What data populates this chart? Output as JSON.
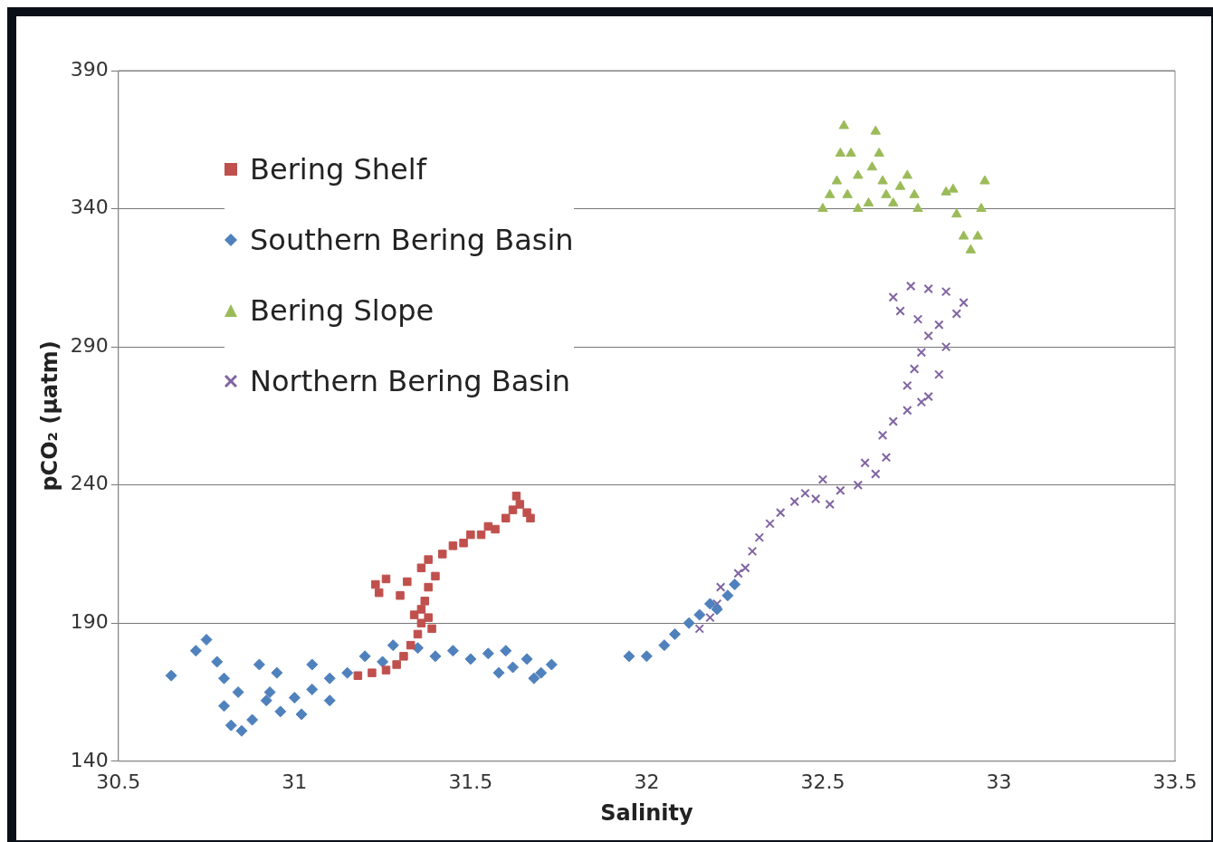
{
  "chart_data": {
    "type": "scatter",
    "xlabel": "Salinity",
    "ylabel": "pCO₂ (µatm)",
    "xlim": [
      30.5,
      33.5
    ],
    "xticks": [
      30.5,
      31,
      31.5,
      32,
      32.5,
      33,
      33.5
    ],
    "ylim": [
      140,
      390
    ],
    "yticks": [
      140,
      190,
      240,
      290,
      340,
      390
    ],
    "grid": "y",
    "legend": "top left",
    "series": [
      {
        "name": "Bering Shelf",
        "color": "#c0504d",
        "marker": "square",
        "x": [
          31.18,
          31.22,
          31.26,
          31.29,
          31.31,
          31.33,
          31.35,
          31.36,
          31.34,
          31.36,
          31.38,
          31.39,
          31.37,
          31.3,
          31.24,
          31.23,
          31.26,
          31.32,
          31.38,
          31.4,
          31.36,
          31.38,
          31.42,
          31.45,
          31.48,
          31.5,
          31.53,
          31.55,
          31.57,
          31.6,
          31.62,
          31.64,
          31.66,
          31.67,
          31.63
        ],
        "values": [
          171,
          172,
          173,
          175,
          178,
          182,
          186,
          190,
          193,
          195,
          192,
          188,
          198,
          200,
          201,
          204,
          206,
          205,
          203,
          207,
          210,
          213,
          215,
          218,
          219,
          222,
          222,
          225,
          224,
          228,
          231,
          233,
          230,
          228,
          236
        ]
      },
      {
        "name": "Southern Bering Basin",
        "color": "#4f81bd",
        "marker": "diamond",
        "x": [
          30.65,
          30.72,
          30.75,
          30.78,
          30.8,
          30.8,
          30.82,
          30.85,
          30.88,
          30.84,
          30.9,
          30.95,
          30.92,
          30.96,
          31.0,
          31.05,
          31.1,
          31.05,
          31.15,
          31.2,
          31.25,
          31.28,
          31.35,
          31.4,
          31.45,
          31.5,
          31.55,
          31.6,
          31.62,
          31.66,
          31.7,
          31.73,
          31.68,
          31.58,
          31.1,
          31.02,
          30.93,
          31.95,
          32.0,
          32.05,
          32.08,
          32.12,
          32.15,
          32.18,
          32.2,
          32.23,
          32.25
        ],
        "values": [
          171,
          180,
          184,
          176,
          170,
          160,
          153,
          151,
          155,
          165,
          175,
          172,
          162,
          158,
          163,
          166,
          170,
          175,
          172,
          178,
          176,
          182,
          181,
          178,
          180,
          177,
          179,
          180,
          174,
          177,
          172,
          175,
          170,
          172,
          162,
          157,
          165,
          178,
          178,
          182,
          186,
          190,
          193,
          197,
          195,
          200,
          204
        ]
      },
      {
        "name": "Bering Slope",
        "color": "#9bbb59",
        "marker": "triangle",
        "x": [
          32.5,
          32.52,
          32.54,
          32.55,
          32.56,
          32.58,
          32.6,
          32.57,
          32.6,
          32.63,
          32.64,
          32.65,
          32.66,
          32.67,
          32.68,
          32.7,
          32.72,
          32.74,
          32.76,
          32.77,
          32.85,
          32.87,
          32.88,
          32.9,
          32.92,
          32.94,
          32.95,
          32.96
        ],
        "values": [
          340,
          345,
          350,
          360,
          370,
          360,
          352,
          345,
          340,
          342,
          355,
          368,
          360,
          350,
          345,
          342,
          348,
          352,
          345,
          340,
          346,
          347,
          338,
          330,
          325,
          330,
          340,
          350
        ]
      },
      {
        "name": "Northern Bering Basin",
        "color": "#8064a2",
        "marker": "cross",
        "x": [
          32.15,
          32.18,
          32.2,
          32.21,
          32.26,
          32.28,
          32.3,
          32.32,
          32.35,
          32.38,
          32.42,
          32.45,
          32.48,
          32.52,
          32.55,
          32.6,
          32.65,
          32.68,
          32.62,
          32.5,
          32.67,
          32.7,
          32.74,
          32.78,
          32.74,
          32.76,
          32.78,
          32.8,
          32.83,
          32.85,
          32.83,
          32.8,
          32.77,
          32.72,
          32.7,
          32.75,
          32.8,
          32.85,
          32.9,
          32.88
        ],
        "values": [
          188,
          192,
          197,
          203,
          208,
          210,
          216,
          221,
          226,
          230,
          234,
          237,
          235,
          233,
          238,
          240,
          244,
          250,
          248,
          242,
          258,
          263,
          267,
          270,
          276,
          282,
          288,
          294,
          298,
          290,
          280,
          272,
          300,
          303,
          308,
          312,
          311,
          310,
          306,
          302
        ]
      }
    ]
  }
}
